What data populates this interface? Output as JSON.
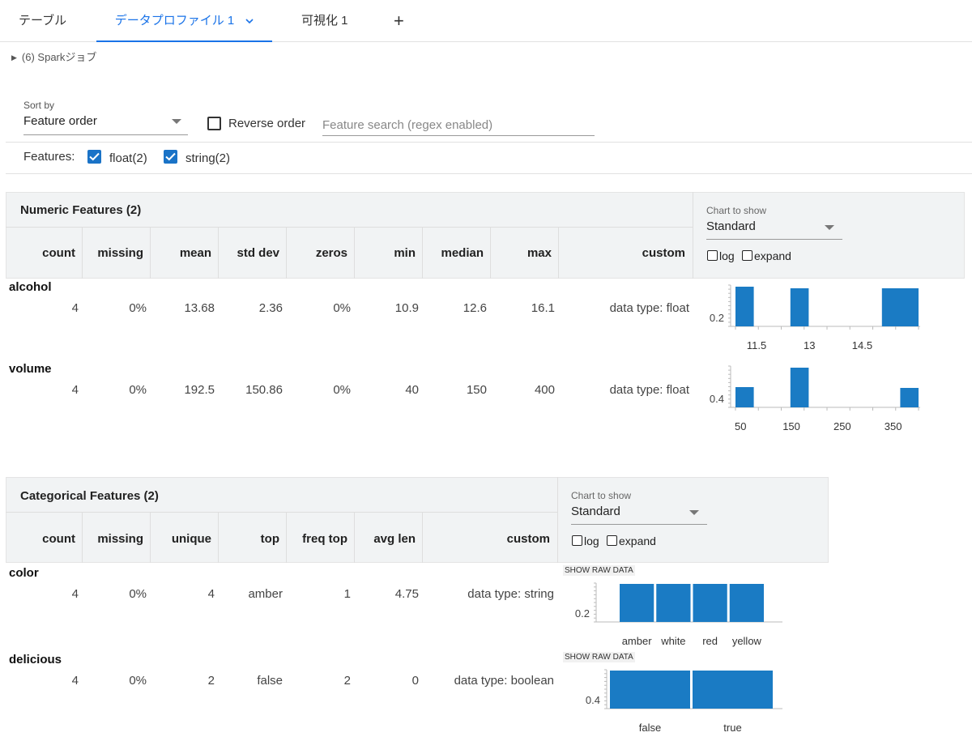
{
  "tabs": [
    {
      "label": "テーブル"
    },
    {
      "label": "データプロファイル 1"
    },
    {
      "label": "可視化 1"
    }
  ],
  "tab_add": "+",
  "spark_jobs": "(6) Sparkジョブ",
  "controls": {
    "sort_by_label": "Sort by",
    "sort_by_value": "Feature order",
    "reverse_order_label": "Reverse order",
    "search_placeholder": "Feature search (regex enabled)",
    "features_label": "Features:",
    "feature_filters": [
      {
        "label": "float(2)",
        "checked": true
      },
      {
        "label": "string(2)",
        "checked": true
      }
    ]
  },
  "numeric": {
    "title": "Numeric Features (2)",
    "columns": [
      "count",
      "missing",
      "mean",
      "std dev",
      "zeros",
      "min",
      "median",
      "max",
      "custom"
    ],
    "chart_to_show_label": "Chart to show",
    "chart_to_show_value": "Standard",
    "log_label": "log",
    "expand_label": "expand",
    "rows": [
      {
        "name": "alcohol",
        "values": [
          "4",
          "0%",
          "13.68",
          "2.36",
          "0%",
          "10.9",
          "12.6",
          "16.1",
          "data type: float"
        ]
      },
      {
        "name": "volume",
        "values": [
          "4",
          "0%",
          "192.5",
          "150.86",
          "0%",
          "40",
          "150",
          "400",
          "data type: float"
        ]
      }
    ]
  },
  "categorical": {
    "title": "Categorical Features (2)",
    "columns": [
      "count",
      "missing",
      "unique",
      "top",
      "freq top",
      "avg len",
      "custom"
    ],
    "chart_to_show_label": "Chart to show",
    "chart_to_show_value": "Standard",
    "log_label": "log",
    "expand_label": "expand",
    "show_raw_data_label": "SHOW RAW DATA",
    "rows": [
      {
        "name": "color",
        "values": [
          "4",
          "0%",
          "4",
          "amber",
          "1",
          "4.75",
          "data type: string"
        ]
      },
      {
        "name": "delicious",
        "values": [
          "4",
          "0%",
          "2",
          "false",
          "2",
          "0",
          "data type: boolean"
        ]
      }
    ]
  },
  "colors": {
    "accent": "#1a73e8",
    "bar": "#1a7bc4",
    "header_bg": "#f1f3f4"
  },
  "chart_data": [
    {
      "type": "bar",
      "feature": "alcohol",
      "x_ticks": [
        "11.5",
        "13",
        "14.5"
      ],
      "y_tick": "0.2",
      "bins": [
        [
          10.9,
          11.42
        ],
        [
          12.46,
          12.98
        ],
        [
          15.06,
          16.1
        ]
      ],
      "values": [
        0.25,
        0.24,
        0.24
      ],
      "xlim": [
        10.9,
        16.1
      ]
    },
    {
      "type": "bar",
      "feature": "volume",
      "x_ticks": [
        "50",
        "150",
        "250",
        "350"
      ],
      "y_tick": "0.4",
      "bins": [
        [
          40,
          76
        ],
        [
          148,
          184
        ],
        [
          364,
          400
        ]
      ],
      "values": [
        0.25,
        0.49,
        0.24
      ],
      "xlim": [
        40,
        400
      ]
    },
    {
      "type": "bar",
      "feature": "color",
      "categories": [
        "amber",
        "white",
        "red",
        "yellow"
      ],
      "values": [
        0.25,
        0.25,
        0.25,
        0.25
      ],
      "y_tick": "0.2"
    },
    {
      "type": "bar",
      "feature": "delicious",
      "categories": [
        "false",
        "true"
      ],
      "values": [
        0.5,
        0.5
      ],
      "y_tick": "0.4"
    }
  ]
}
